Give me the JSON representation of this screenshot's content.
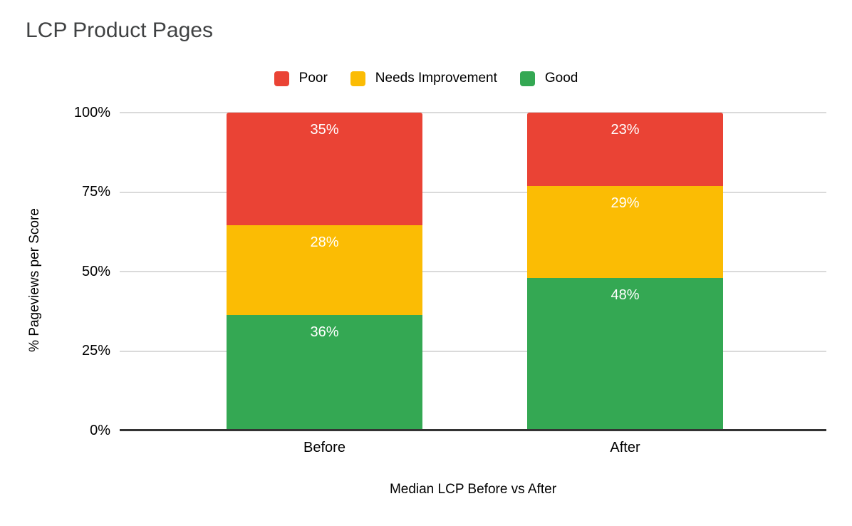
{
  "title": "LCP Product Pages",
  "legend": [
    {
      "label": "Poor",
      "color": "#EA4335"
    },
    {
      "label": "Needs Improvement",
      "color": "#FBBC04"
    },
    {
      "label": "Good",
      "color": "#34A853"
    }
  ],
  "y_axis": {
    "title": "% Pageviews per Score",
    "ticks": {
      "t100": "100%",
      "t75": "75%",
      "t50": "50%",
      "t25": "25%",
      "t0": "0%"
    }
  },
  "x_axis": {
    "title": "Median LCP Before vs After",
    "categories": {
      "before": "Before",
      "after": "After"
    }
  },
  "chart_data": {
    "type": "bar",
    "stacked": true,
    "percent_stacked": true,
    "title": "LCP Product Pages",
    "xlabel": "Median LCP Before vs After",
    "ylabel": "% Pageviews per Score",
    "categories": [
      "Before",
      "After"
    ],
    "series": [
      {
        "name": "Poor",
        "color": "#EA4335",
        "values": [
          35,
          23
        ]
      },
      {
        "name": "Needs Improvement",
        "color": "#FBBC04",
        "values": [
          28,
          29
        ]
      },
      {
        "name": "Good",
        "color": "#34A853",
        "values": [
          36,
          48
        ]
      }
    ],
    "data_labels": {
      "before": [
        "35%",
        "28%",
        "36%"
      ],
      "after": [
        "23%",
        "29%",
        "48%"
      ]
    },
    "ylim": [
      0,
      100
    ],
    "yticks": [
      "0%",
      "25%",
      "50%",
      "75%",
      "100%"
    ],
    "grid": true,
    "legend_position": "top",
    "gridline_color": "#dadada",
    "axis_line_color": "#333333"
  }
}
